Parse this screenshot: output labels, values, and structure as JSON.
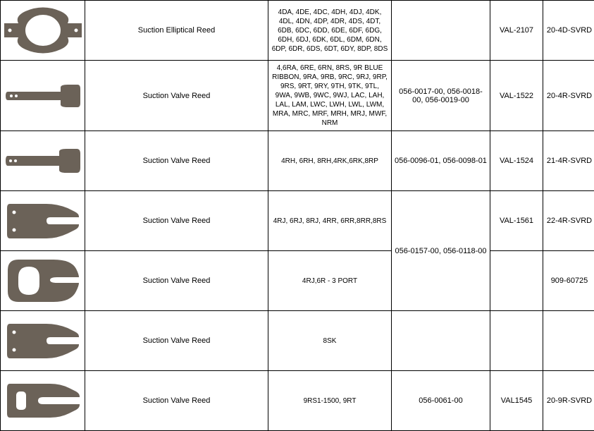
{
  "part_fill": "#6b6258",
  "rows": [
    {
      "shape": "elliptical-reed",
      "desc": "Suction Elliptical Reed",
      "models": "4DA, 4DE, 4DC, 4DH, 4DJ, 4DK, 4DL, 4DN, 4DP, 4DR, 4DS, 4DT, 6DB, 6DC, 6DD, 6DE, 6DF, 6DG, 6DH, 6DJ, 6DK, 6DL, 6DM, 6DN, 6DP, 6DR, 6DS, 6DT, 6DY, 8DP, 8DS",
      "p1": "",
      "p2": "VAL-2107",
      "p3": "20-4D-SVRD"
    },
    {
      "shape": "long-reed-a",
      "desc": "Suction Valve Reed",
      "models": "4,6RA, 6RE, 6RN, 8RS, 9R BLUE RIBBON, 9RA, 9RB, 9RC, 9RJ, 9RP, 9RS, 9RT, 9RY, 9TH, 9TK, 9TL, 9WA, 9WB, 9WC, 9WJ, LAC, LAH, LAL, LAM, LWC, LWH, LWL, LWM, MRA, MRC, MRF, MRH, MRJ, MWF, NRM",
      "p1": "056-0017-00, 056-0018-00, 056-0019-00",
      "p2": "VAL-1522",
      "p3": "20-4R-SVRD"
    },
    {
      "shape": "long-reed-b",
      "desc": "Suction Valve Reed",
      "models": "4RH, 6RH, 8RH,4RK,6RK,8RP",
      "p1": "056-0096-01, 056-0098-01",
      "p2": "VAL-1524",
      "p3": "21-4R-SVRD"
    },
    {
      "shape": "fork-a",
      "desc": "Suction Valve Reed",
      "models": "4RJ, 6RJ, 8RJ, 4RR, 6RR,8RR,8RS",
      "p1": "056-0157-00, 056-0118-00",
      "p1_rowspan": 2,
      "p2": "VAL-1561",
      "p3": "22-4R-SVRD"
    },
    {
      "shape": "fork-curved",
      "desc": "Suction Valve Reed",
      "models": "4RJ,6R  - 3 PORT",
      "p1": null,
      "p2": "",
      "p3": "909-60725"
    },
    {
      "shape": "fork-a",
      "desc": "Suction Valve Reed",
      "models": "8SK",
      "p1": "",
      "p2": "",
      "p3": ""
    },
    {
      "shape": "slot-reed",
      "desc": "Suction Valve Reed",
      "models": "9RS1-1500, 9RT",
      "p1": "056-0061-00",
      "p2": "VAL1545",
      "p3": "20-9R-SVRD"
    }
  ]
}
